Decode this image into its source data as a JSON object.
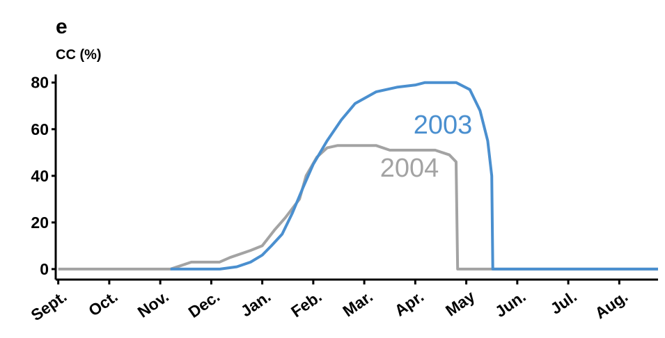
{
  "chart_data": {
    "type": "line",
    "panel_label": "e",
    "y_label": "CC (%)",
    "xlim": [
      -0.05,
      11.76
    ],
    "xticks": [
      {
        "value": 0,
        "label": "Sept."
      },
      {
        "value": 1,
        "label": "Oct."
      },
      {
        "value": 2,
        "label": "Nov."
      },
      {
        "value": 3,
        "label": "Dec."
      },
      {
        "value": 4,
        "label": "Jan."
      },
      {
        "value": 5,
        "label": "Feb."
      },
      {
        "value": 6,
        "label": "Mar."
      },
      {
        "value": 7,
        "label": "Apr."
      },
      {
        "value": 8,
        "label": "May"
      },
      {
        "value": 9,
        "label": "Jun."
      },
      {
        "value": 10,
        "label": "Jul."
      },
      {
        "value": 11,
        "label": "Aug."
      }
    ],
    "ylim": [
      -4.5,
      83.5
    ],
    "yticks": [
      0,
      20,
      40,
      60,
      80
    ],
    "series": [
      {
        "name": "2003",
        "color": "#4a8fcf",
        "x": [
          2.2,
          3.17,
          3.5,
          3.77,
          4.0,
          4.18,
          4.39,
          4.59,
          4.8,
          5.0,
          5.27,
          5.55,
          5.82,
          6.23,
          6.64,
          7.01,
          7.19,
          7.8,
          8.07,
          8.27,
          8.42,
          8.5,
          8.52,
          11.76
        ],
        "values": [
          0,
          0,
          1,
          3,
          6,
          10,
          15,
          24,
          35,
          45,
          55,
          64,
          71,
          76,
          78,
          79,
          80,
          80,
          77,
          68,
          55,
          40,
          0,
          0
        ]
      },
      {
        "name": "2004",
        "color": "#a3a3a3",
        "x": [
          0,
          2.2,
          2.61,
          3.16,
          3.37,
          3.77,
          4.0,
          4.25,
          4.45,
          4.73,
          4.86,
          5.07,
          5.27,
          5.48,
          6.23,
          6.5,
          7.39,
          7.67,
          7.8,
          7.83,
          11.76
        ],
        "values": [
          0,
          0,
          3,
          3,
          5,
          8,
          10,
          17,
          22,
          30,
          40,
          48,
          52,
          53,
          53,
          51,
          51,
          49,
          46,
          0,
          0
        ]
      }
    ]
  }
}
